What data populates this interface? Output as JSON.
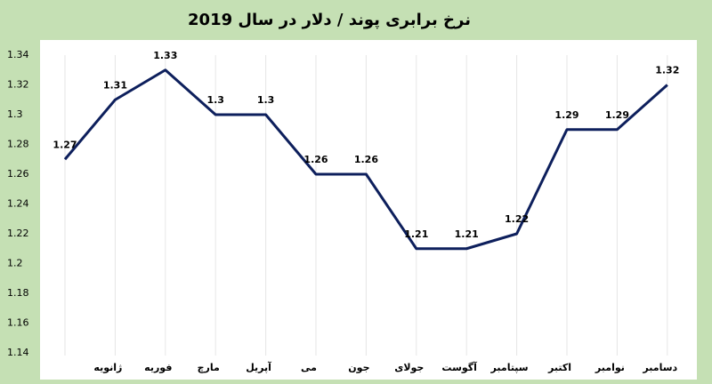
{
  "chart_data": {
    "type": "line",
    "title": "نرخ برابری پوند / دلار در سال 2019",
    "categories": [
      null,
      "ژانویه",
      "فوریه",
      "مارچ",
      "آپریل",
      "می",
      "جون",
      "جولای",
      "آگوست",
      "سپتامبر",
      "اکتبر",
      "نوامبر",
      "دسامبر"
    ],
    "series": [
      {
        "color": "#0d1f5c",
        "values": [
          1.27,
          1.31,
          1.33,
          1.3,
          1.3,
          1.26,
          1.26,
          1.21,
          1.21,
          1.22,
          1.29,
          1.29,
          1.32
        ]
      }
    ],
    "ylim": [
      1.14,
      1.34
    ],
    "yticks": [
      1.14,
      1.16,
      1.18,
      1.2,
      1.22,
      1.24,
      1.26,
      1.28,
      1.3,
      1.32,
      1.34
    ],
    "grid": false
  }
}
